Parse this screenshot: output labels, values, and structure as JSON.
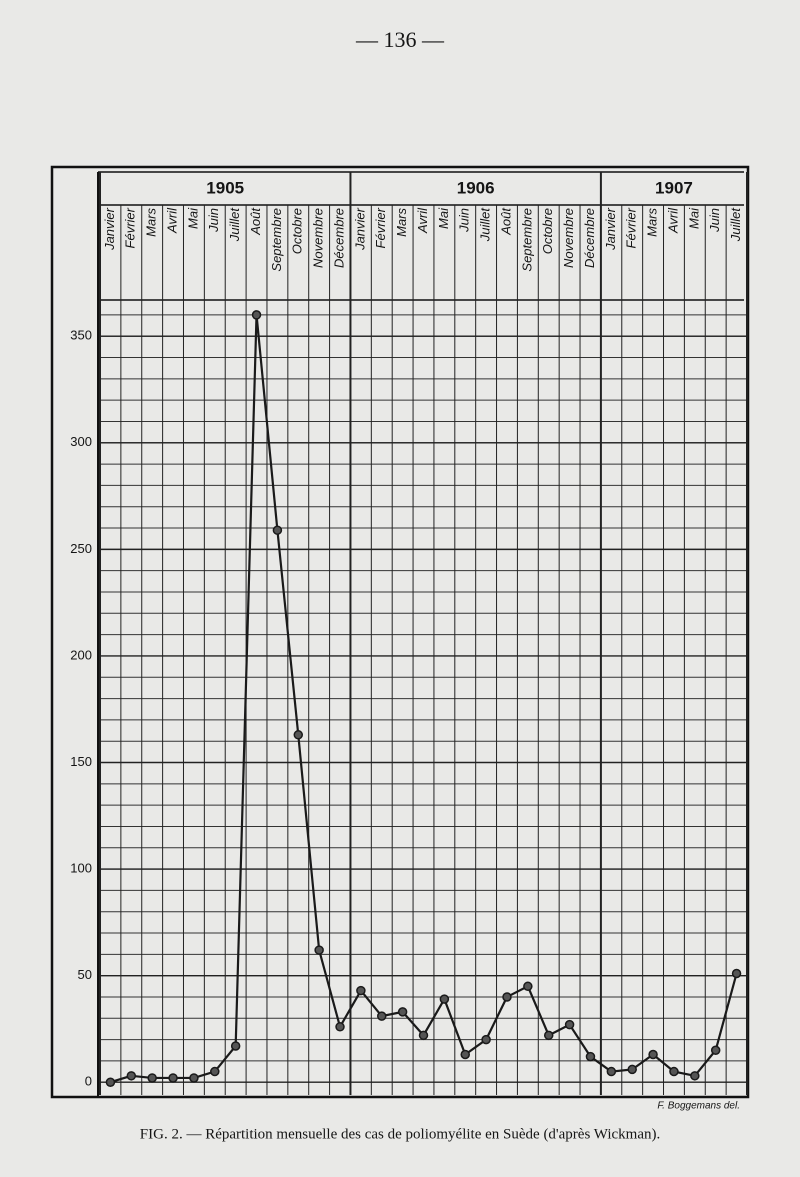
{
  "chart_data": {
    "type": "line",
    "page_number": "— 136 —",
    "caption": "FIG. 2. — Répartition mensuelle des cas de poliomyélite en Suède (d'après Wickman).",
    "signature": "F. Boggemans del.",
    "years": [
      "1905",
      "1906",
      "1907"
    ],
    "categories": [
      "Janvier",
      "Février",
      "Mars",
      "Avril",
      "Mai",
      "Juin",
      "Juillet",
      "Août",
      "Septembre",
      "Octobre",
      "Novembre",
      "Décembre",
      "Janvier",
      "Février",
      "Mars",
      "Avril",
      "Mai",
      "Juin",
      "Juillet",
      "Août",
      "Septembre",
      "Octobre",
      "Novembre",
      "Décembre",
      "Janvier",
      "Février",
      "Mars",
      "Avril",
      "Mai",
      "Juin",
      "Juillet"
    ],
    "values": [
      0,
      3,
      2,
      2,
      2,
      5,
      17,
      360,
      259,
      163,
      62,
      26,
      43,
      31,
      33,
      22,
      39,
      13,
      20,
      40,
      45,
      22,
      27,
      12,
      5,
      6,
      13,
      5,
      3,
      15,
      51
    ],
    "color": "#1a1a1a",
    "ylim": [
      -6,
      367
    ],
    "yticks": [
      0,
      50,
      100,
      150,
      200,
      250,
      300,
      350
    ],
    "grid": true
  }
}
